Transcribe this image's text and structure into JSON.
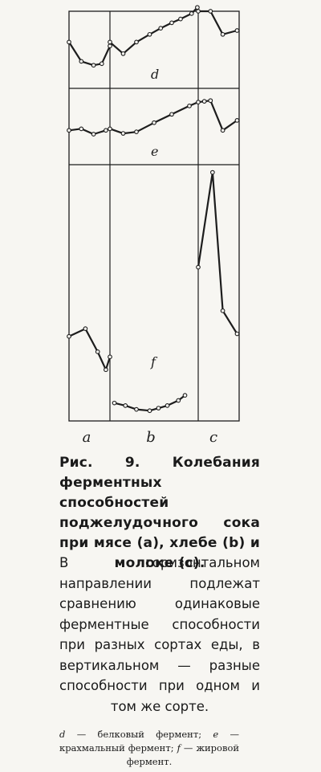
{
  "caption": "Рис. 9. Колебания ферментных способностей поджелудочного сока при мясе (a), хлебе (b) и молоке (c).",
  "note": "В горизонтальном направлении подлежат сравнению одинаковые ферментные способности при разных сортах еды, в вертикальном — разные способности при одном и том же сорте.",
  "legend": {
    "d_key": "d",
    "d_text": "— белковый фермент;",
    "e_key": "e",
    "e_text": "— крахмальный фермент;",
    "f_key": "f",
    "f_text": "— жировой фермент."
  },
  "chart_data": {
    "type": "line",
    "title": "",
    "xlabel": "",
    "ylabel": "",
    "grid": false,
    "column_labels": [
      "a",
      "b",
      "c"
    ],
    "row_labels": [
      "d",
      "e",
      "f"
    ],
    "series": [
      {
        "name": "d",
        "x": [
          0.0,
          0.3,
          0.6,
          0.8,
          1.0,
          1.0,
          1.3,
          1.6,
          1.9,
          2.15,
          2.4,
          2.6,
          2.85,
          2.98,
          3.0,
          3.3,
          3.6,
          3.95
        ],
        "y": [
          0.6,
          0.35,
          0.3,
          0.32,
          0.55,
          0.6,
          0.45,
          0.6,
          0.7,
          0.78,
          0.85,
          0.9,
          0.97,
          1.05,
          1.0,
          1.0,
          0.7,
          0.75
        ]
      },
      {
        "name": "e",
        "x": [
          0.0,
          0.3,
          0.6,
          0.9,
          1.0,
          1.3,
          1.6,
          2.0,
          2.4,
          2.8,
          3.0,
          3.15,
          3.3,
          3.6,
          3.95
        ],
        "y": [
          0.45,
          0.47,
          0.4,
          0.45,
          0.47,
          0.41,
          0.43,
          0.55,
          0.66,
          0.77,
          0.82,
          0.83,
          0.84,
          0.45,
          0.58
        ]
      },
      {
        "name": "f",
        "x": [
          0.0,
          0.4,
          0.7,
          0.9,
          1.0
        ],
        "y": [
          0.33,
          0.36,
          0.27,
          0.2,
          0.25
        ]
      },
      {
        "name": "f",
        "x": [
          1.1,
          1.35,
          1.6,
          1.9,
          2.1,
          2.3,
          2.55,
          2.7
        ],
        "y": [
          0.07,
          0.06,
          0.045,
          0.04,
          0.05,
          0.06,
          0.08,
          0.1
        ]
      },
      {
        "name": "f",
        "x": [
          3.0,
          3.35,
          3.6,
          3.95
        ],
        "y": [
          0.6,
          0.97,
          0.43,
          0.34
        ]
      }
    ]
  }
}
